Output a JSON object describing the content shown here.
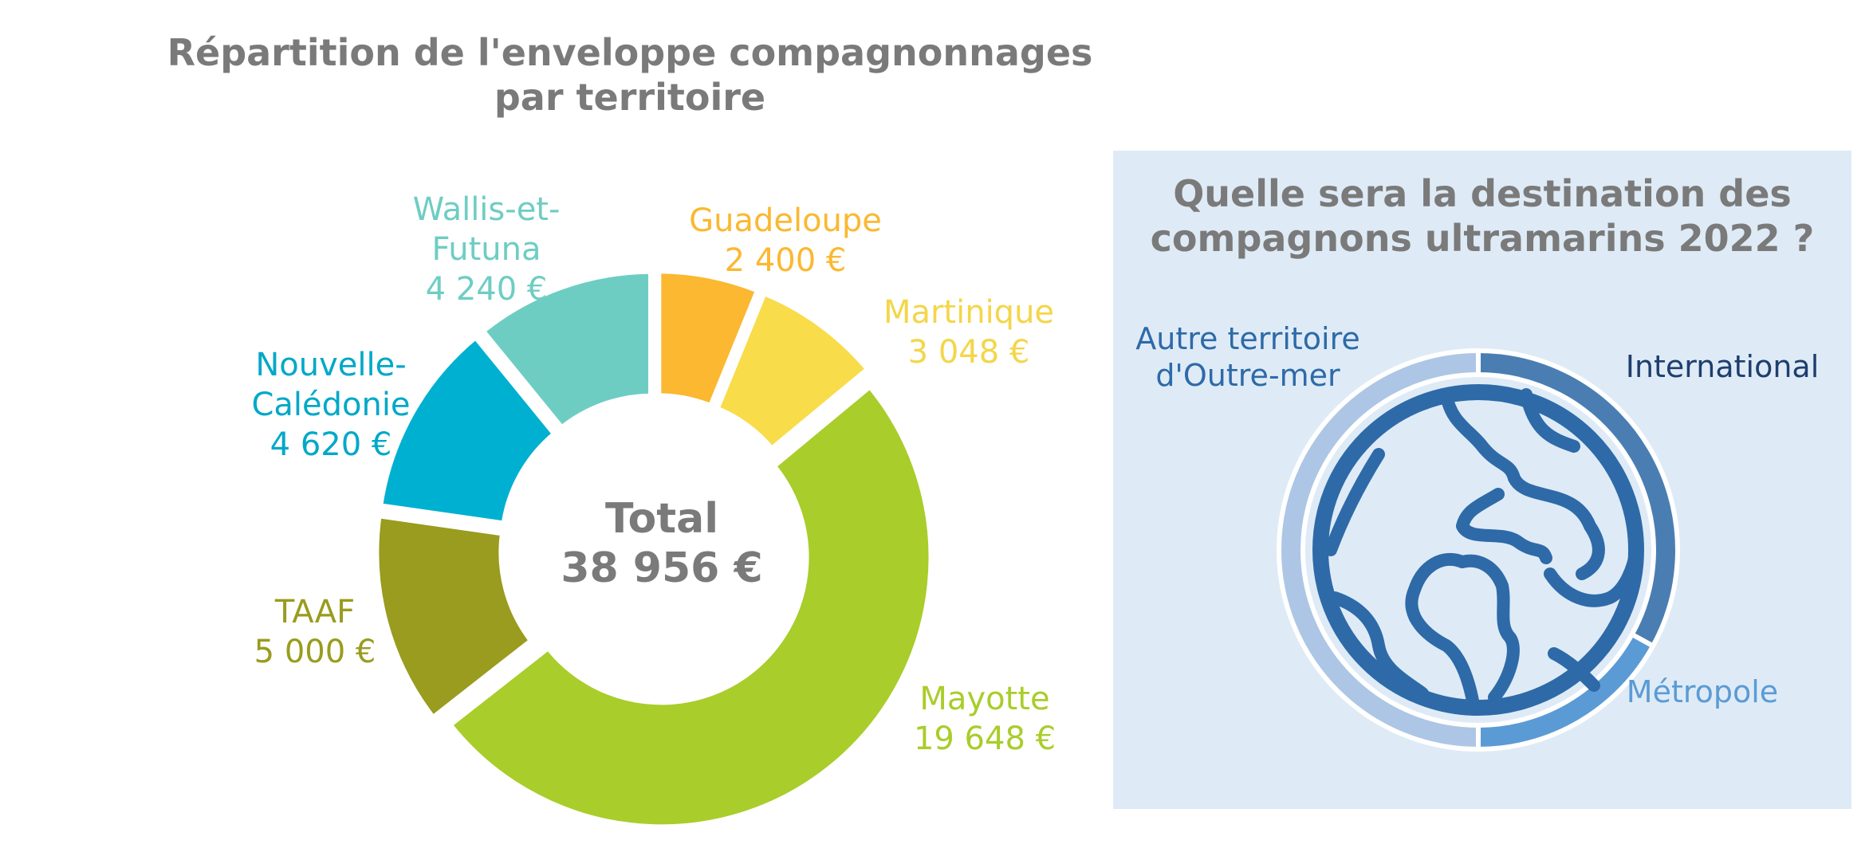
{
  "chart_data": [
    {
      "type": "pie",
      "variant": "donut",
      "title_lines": [
        "Répartition de l'enveloppe compagnonnages",
        "par territoire"
      ],
      "center_label_lines": [
        "Total",
        "38 956 €"
      ],
      "total": 38956,
      "categories": [
        "Guadeloupe",
        "Martinique",
        "Mayotte",
        "TAAF",
        "Nouvelle-Calédonie",
        "Wallis-et-Futuna"
      ],
      "values": [
        2400,
        3048,
        19648,
        5000,
        4620,
        4240
      ],
      "colors": [
        "#fbb830",
        "#f8dc4a",
        "#a9cd2a",
        "#999c1e",
        "#00b0d0",
        "#6ecdc3"
      ],
      "labels": [
        {
          "lines": [
            "Guadeloupe",
            "2 400 €"
          ],
          "color": "#fbb830"
        },
        {
          "lines": [
            "Martinique",
            "3 048 €"
          ],
          "color": "#f3d64a"
        },
        {
          "lines": [
            "Mayotte",
            "19 648 €"
          ],
          "color": "#a9cd2a"
        },
        {
          "lines": [
            "TAAF",
            "5 000 €"
          ],
          "color": "#999c1e"
        },
        {
          "lines": [
            "Nouvelle-",
            "Calédonie",
            "4 620 €"
          ],
          "color": "#00a8c8"
        },
        {
          "lines": [
            "Wallis-et-",
            "Futuna",
            "4 240 €"
          ],
          "color": "#6ecdc3"
        }
      ],
      "legend": "none"
    },
    {
      "type": "pie",
      "variant": "donut",
      "title_lines": [
        "Quelle sera la destination des",
        "compagnons ultramarins 2022 ?"
      ],
      "categories": [
        "International",
        "Métropole",
        "Autre territoire d'Outre-mer"
      ],
      "values": [
        33,
        17,
        50
      ],
      "colors": [
        "#4a7eb3",
        "#5b9bd5",
        "#adc6e5"
      ],
      "labels": [
        {
          "lines": [
            "International"
          ],
          "color": "#1f3e6e"
        },
        {
          "lines": [
            "Métropole"
          ],
          "color": "#5b9bd5"
        },
        {
          "lines": [
            "Autre territoire",
            "d'Outre-mer"
          ],
          "color": "#2e6aa8"
        }
      ],
      "center_icon": "globe-icon",
      "legend": "none"
    }
  ],
  "colors": {
    "panel_background": "#deebf6",
    "title": "#7a7a7a",
    "globe": "#2e6aa8"
  }
}
